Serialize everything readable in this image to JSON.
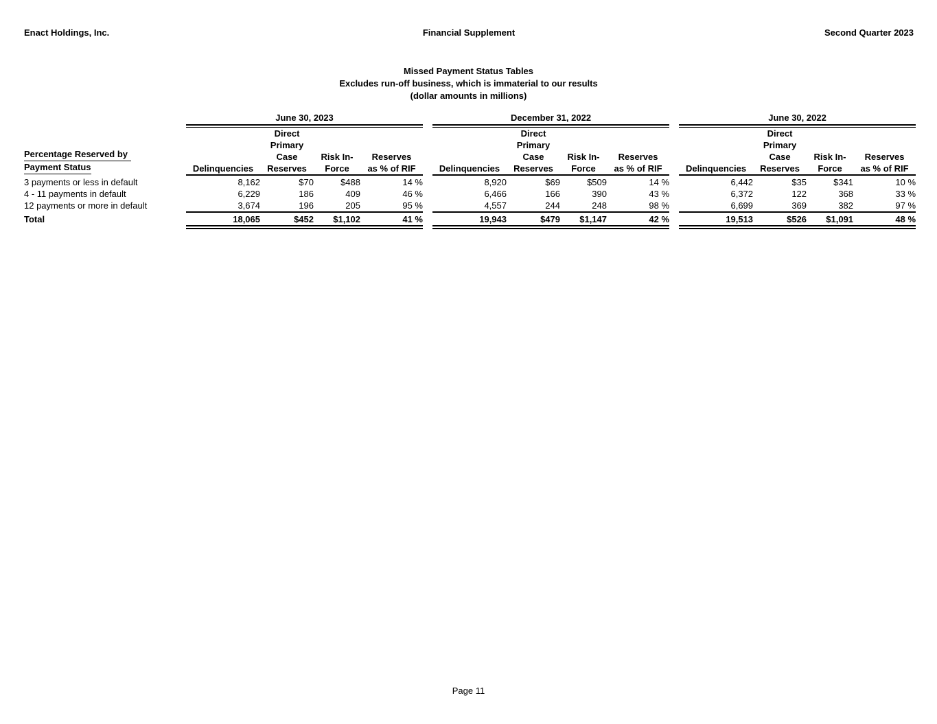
{
  "colors": {
    "text": "#000000",
    "background": "#ffffff"
  },
  "header": {
    "company": "Enact Holdings, Inc.",
    "document": "Financial Supplement",
    "period": "Second Quarter 2023"
  },
  "title": {
    "line1": "Missed Payment Status Tables",
    "line2": "Excludes run-off business, which is immaterial to our results",
    "line3": "(dollar amounts in millions)"
  },
  "table": {
    "row_header_line1": "Percentage Reserved by",
    "row_header_line2": "Payment Status",
    "columns": {
      "delinquencies": "Delinquencies",
      "case_reserves": [
        "Direct",
        "Primary",
        "Case",
        "Reserves"
      ],
      "risk_in_force": [
        "Risk In-",
        "Force"
      ],
      "reserves_pct": [
        "Reserves",
        "as % of RIF"
      ]
    },
    "row_labels": [
      "3 payments or less in default",
      "4 - 11 payments in default",
      "12 payments or more in default"
    ],
    "total_label": "Total",
    "periods": [
      {
        "date": "June 30, 2023",
        "rows": [
          [
            "8,162",
            "$70",
            "$488",
            "14 %"
          ],
          [
            "6,229",
            "186",
            "409",
            "46 %"
          ],
          [
            "3,674",
            "196",
            "205",
            "95 %"
          ]
        ],
        "total": [
          "18,065",
          "$452",
          "$1,102",
          "41 %"
        ]
      },
      {
        "date": "December 31, 2022",
        "rows": [
          [
            "8,920",
            "$69",
            "$509",
            "14 %"
          ],
          [
            "6,466",
            "166",
            "390",
            "43 %"
          ],
          [
            "4,557",
            "244",
            "248",
            "98 %"
          ]
        ],
        "total": [
          "19,943",
          "$479",
          "$1,147",
          "42 %"
        ]
      },
      {
        "date": "June 30, 2022",
        "rows": [
          [
            "6,442",
            "$35",
            "$341",
            "10 %"
          ],
          [
            "6,372",
            "122",
            "368",
            "33 %"
          ],
          [
            "6,699",
            "369",
            "382",
            "97 %"
          ]
        ],
        "total": [
          "19,513",
          "$526",
          "$1,091",
          "48 %"
        ]
      }
    ]
  },
  "footer": {
    "page_label": "Page 11"
  }
}
